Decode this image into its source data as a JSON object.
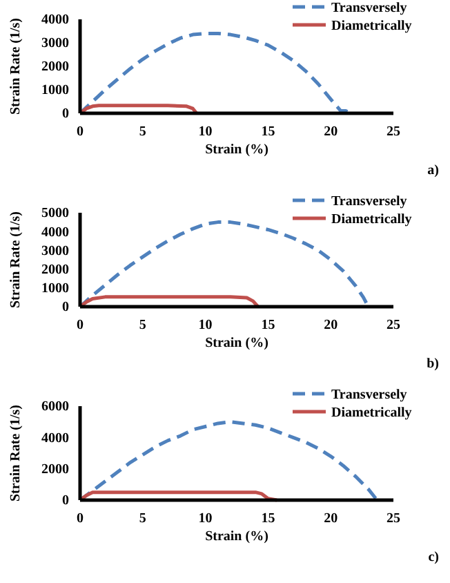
{
  "chart_data": [
    {
      "type": "line",
      "xlabel": "Strain (%)",
      "ylabel": "Strain Rate (1/s)",
      "annotations": [
        "a)"
      ],
      "xlim": [
        0,
        25
      ],
      "xticks": [
        0,
        5,
        10,
        15,
        20,
        25
      ],
      "ylim": [
        0,
        4000
      ],
      "yticks": [
        0,
        1000,
        2000,
        3000,
        4000
      ],
      "grid": false,
      "legend": "top right",
      "marker": "none",
      "series": [
        {
          "name": "Transversely",
          "color": "#4f81bd",
          "line_style": "dashed",
          "x": [
            0,
            1,
            2,
            3,
            4,
            5,
            6,
            7,
            8,
            9,
            10,
            11,
            12,
            13,
            14,
            15,
            16,
            17,
            18,
            19,
            20,
            20.8,
            21.2,
            21.6
          ],
          "values": [
            0,
            500,
            1000,
            1450,
            1900,
            2300,
            2650,
            2950,
            3200,
            3350,
            3400,
            3400,
            3350,
            3250,
            3100,
            2900,
            2600,
            2250,
            1800,
            1250,
            600,
            100,
            100,
            0
          ]
        },
        {
          "name": "Diametrically",
          "color": "#c0504d",
          "line_style": "solid",
          "x": [
            0,
            0.5,
            1,
            1.5,
            3,
            5,
            7,
            8.5,
            9,
            9.3
          ],
          "values": [
            0,
            200,
            300,
            330,
            330,
            330,
            330,
            300,
            200,
            0
          ]
        }
      ]
    },
    {
      "type": "line",
      "xlabel": "Strain (%)",
      "ylabel": "Strain Rate (1/s)",
      "annotations": [
        "b)"
      ],
      "xlim": [
        0,
        25
      ],
      "xticks": [
        0,
        5,
        10,
        15,
        20,
        25
      ],
      "ylim": [
        0,
        5000
      ],
      "yticks": [
        0,
        1000,
        2000,
        3000,
        4000,
        5000
      ],
      "grid": false,
      "legend": "top right",
      "marker": "none",
      "series": [
        {
          "name": "Transversely",
          "color": "#4f81bd",
          "line_style": "dashed",
          "x": [
            0,
            1,
            2,
            3,
            4,
            5,
            6,
            7,
            8,
            9,
            10,
            11,
            12,
            13,
            14,
            15,
            16,
            17,
            18,
            19,
            20,
            21,
            22,
            22.6,
            23
          ],
          "values": [
            0,
            600,
            1150,
            1700,
            2200,
            2650,
            3100,
            3500,
            3850,
            4150,
            4400,
            4500,
            4500,
            4400,
            4250,
            4100,
            3900,
            3650,
            3350,
            3000,
            2500,
            1900,
            1100,
            500,
            0
          ]
        },
        {
          "name": "Diametrically",
          "color": "#c0504d",
          "line_style": "solid",
          "x": [
            0,
            0.5,
            1,
            2,
            4,
            8,
            12,
            13.3,
            13.8,
            14.2
          ],
          "values": [
            0,
            250,
            420,
            520,
            520,
            520,
            520,
            480,
            300,
            0
          ]
        }
      ]
    },
    {
      "type": "line",
      "xlabel": "Strain (%)",
      "ylabel": "Strain Rate (1/s)",
      "annotations": [
        "c)"
      ],
      "xlim": [
        0,
        25
      ],
      "xticks": [
        0,
        5,
        10,
        15,
        20,
        25
      ],
      "ylim": [
        0,
        6000
      ],
      "yticks": [
        0,
        2000,
        4000,
        6000
      ],
      "grid": false,
      "legend": "top right",
      "marker": "none",
      "series": [
        {
          "name": "Transversely",
          "color": "#4f81bd",
          "line_style": "dashed",
          "x": [
            0,
            1,
            2,
            3,
            4,
            5,
            6,
            7,
            8,
            9,
            10,
            11,
            12,
            13,
            14,
            15,
            16,
            17,
            18,
            19,
            20,
            21,
            22,
            23,
            23.5,
            23.7
          ],
          "values": [
            0,
            600,
            1200,
            1800,
            2400,
            2900,
            3400,
            3800,
            4100,
            4500,
            4700,
            4900,
            5000,
            4900,
            4800,
            4600,
            4300,
            4000,
            3700,
            3300,
            2800,
            2200,
            1500,
            700,
            200,
            0
          ]
        },
        {
          "name": "Diametrically",
          "color": "#c0504d",
          "line_style": "solid",
          "x": [
            0,
            0.5,
            1,
            2,
            14,
            14.5,
            15,
            15.7
          ],
          "values": [
            0,
            300,
            500,
            500,
            500,
            400,
            100,
            0
          ]
        }
      ]
    }
  ]
}
